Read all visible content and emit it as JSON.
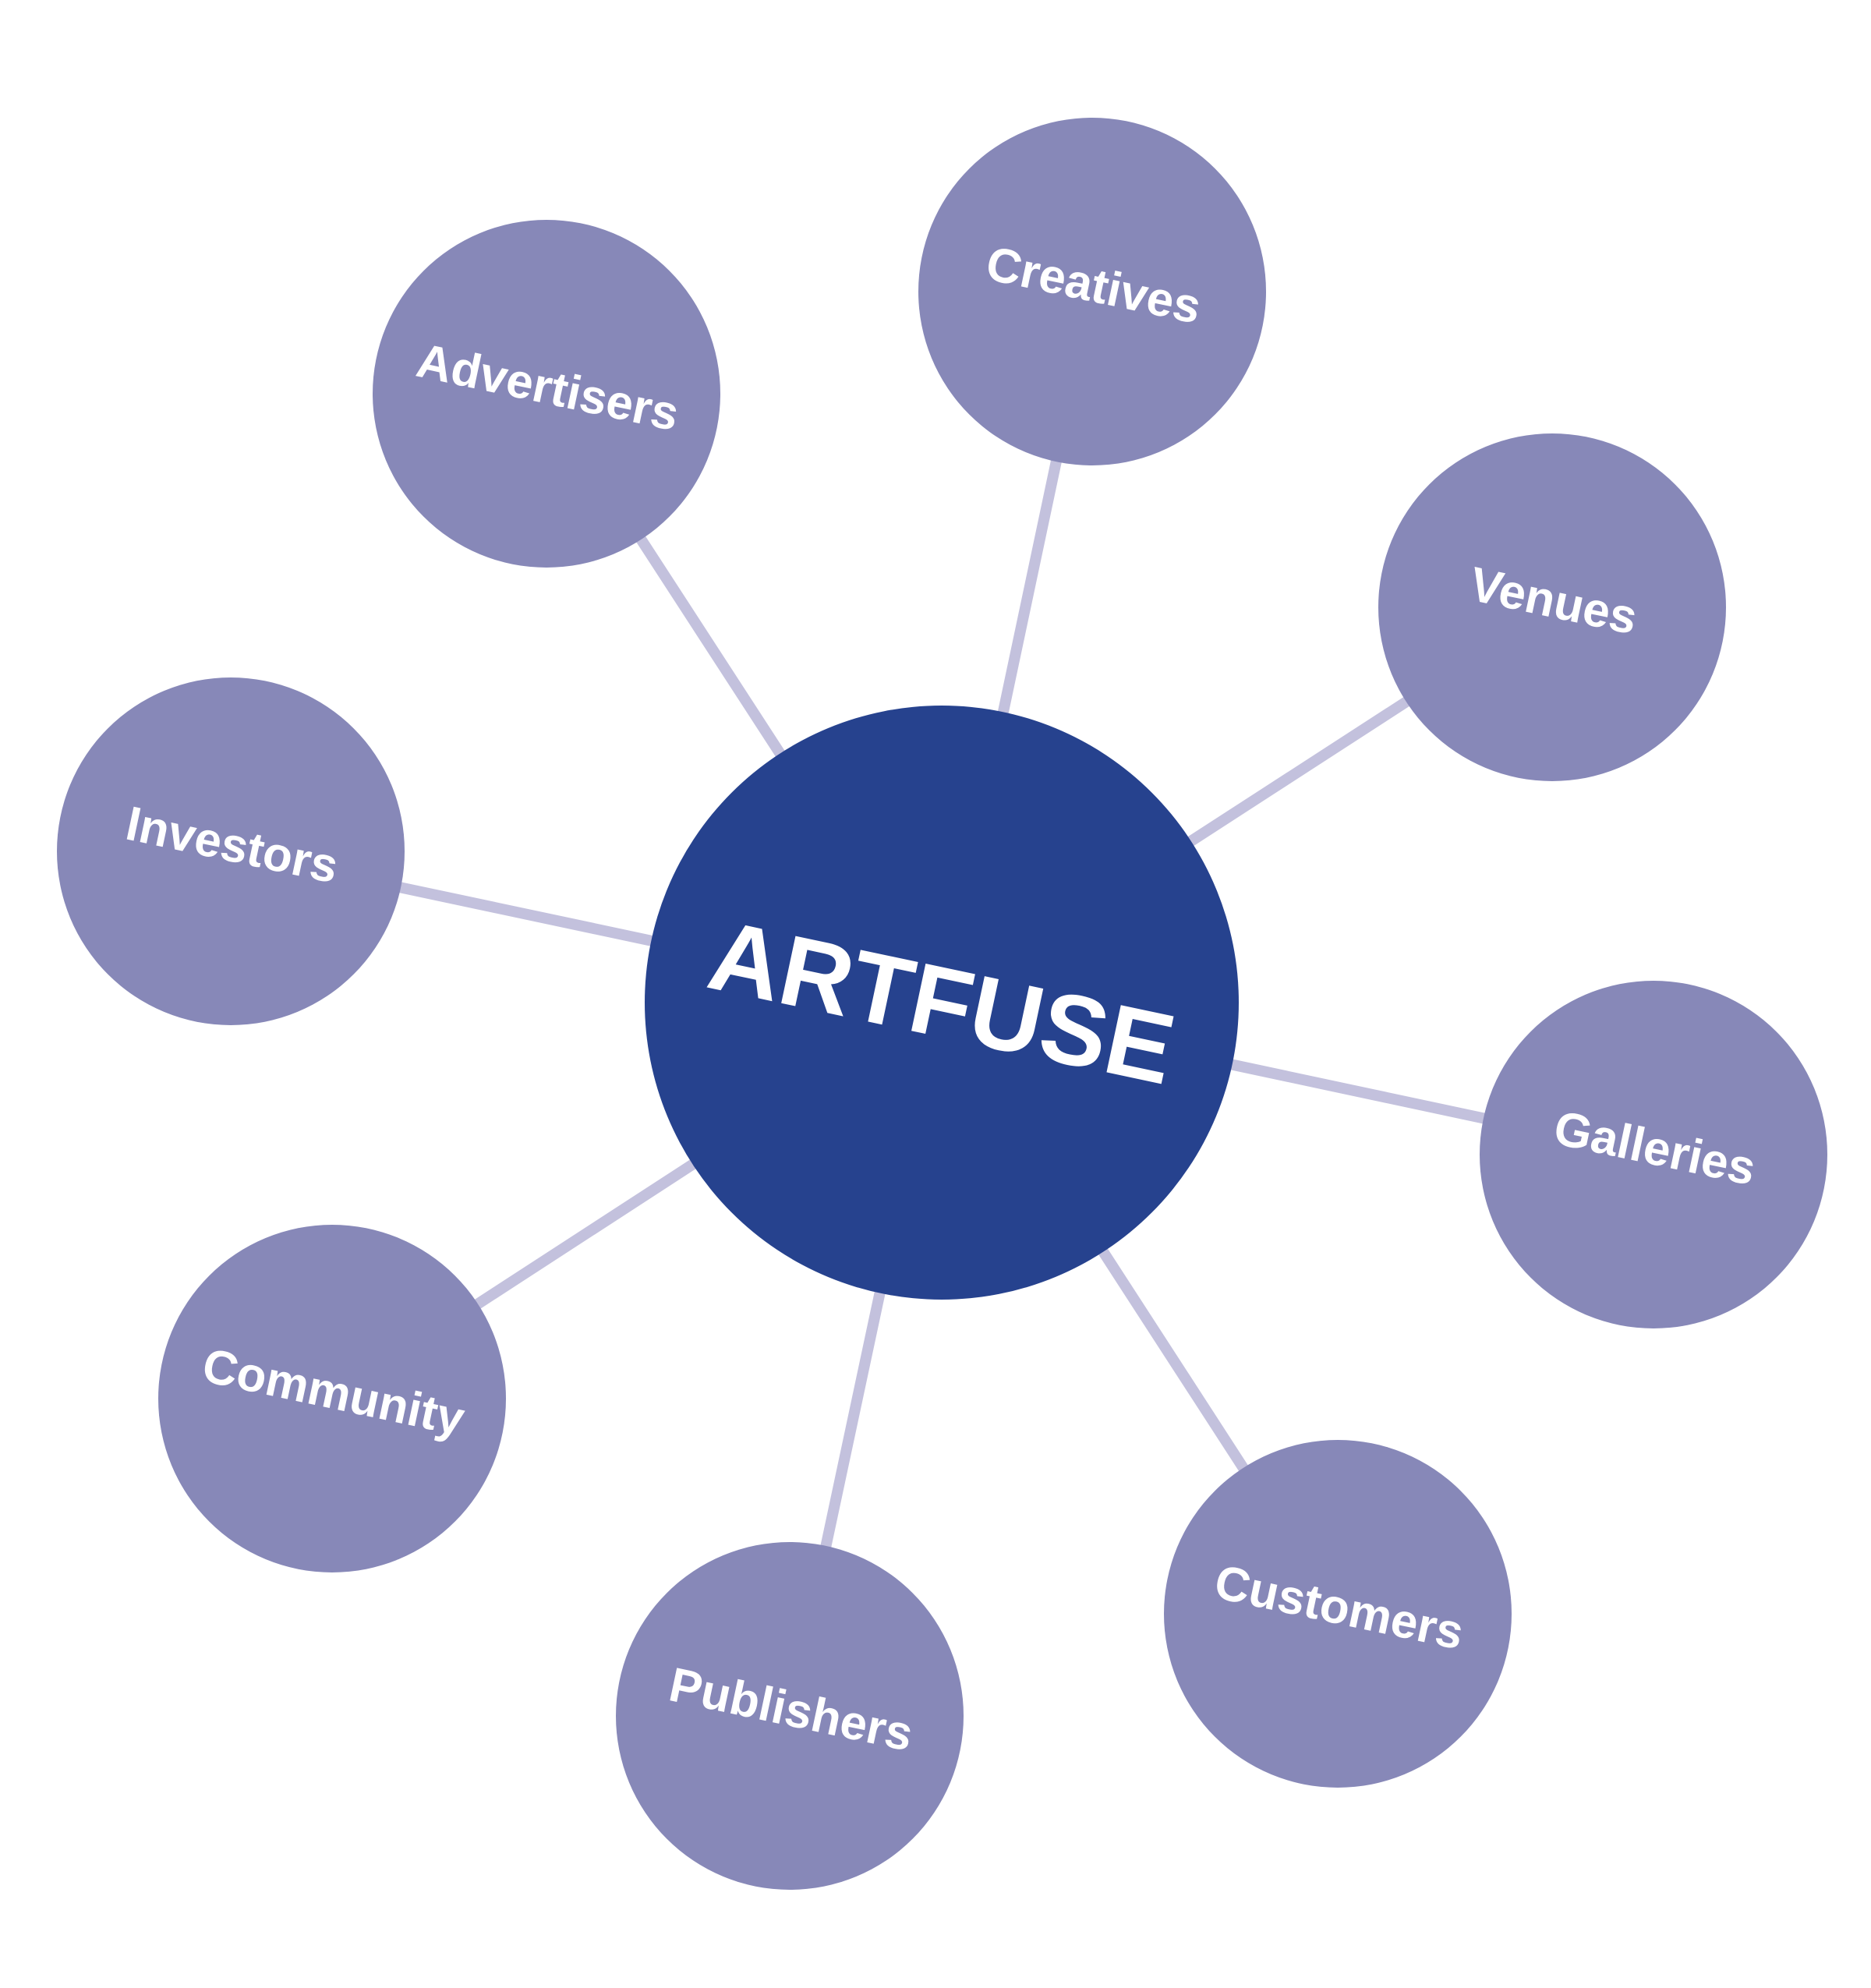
{
  "diagram": {
    "center": {
      "label": "ARTFUSE",
      "color": "#26428e"
    },
    "node_color": "#8788b8",
    "connector_color": "#c3c1dd",
    "nodes": [
      {
        "id": "creatives",
        "label": "Creatives"
      },
      {
        "id": "venues",
        "label": "Venues"
      },
      {
        "id": "galleries",
        "label": "Galleries"
      },
      {
        "id": "customers",
        "label": "Customers"
      },
      {
        "id": "publishers",
        "label": "Publishers"
      },
      {
        "id": "community",
        "label": "Community"
      },
      {
        "id": "investors",
        "label": "Investors"
      },
      {
        "id": "advertisers",
        "label": "Advertisers"
      }
    ]
  }
}
